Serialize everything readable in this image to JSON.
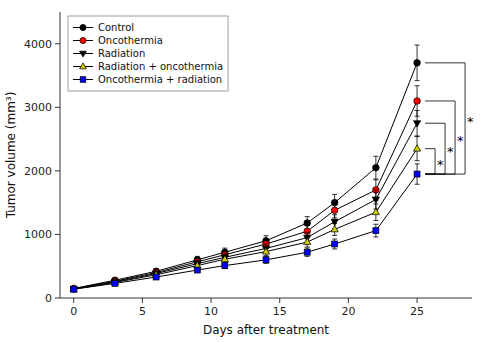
{
  "chart_data": {
    "type": "line",
    "x": [
      0,
      3,
      6,
      9,
      11,
      14,
      17,
      19,
      22,
      25
    ],
    "series": [
      {
        "name": "Control",
        "color": "black",
        "marker": "circle",
        "values": [
          150,
          280,
          420,
          600,
          720,
          900,
          1180,
          1500,
          2050,
          3700
        ],
        "errors": [
          15,
          30,
          40,
          55,
          65,
          80,
          100,
          130,
          180,
          280
        ]
      },
      {
        "name": "Oncothermia",
        "color": "red",
        "marker": "circle",
        "values": [
          145,
          265,
          400,
          570,
          680,
          850,
          1050,
          1380,
          1700,
          3100
        ],
        "errors": [
          15,
          28,
          38,
          52,
          60,
          75,
          90,
          120,
          160,
          240
        ]
      },
      {
        "name": "Radiation",
        "color": "black",
        "marker": "triangle-down",
        "values": [
          142,
          255,
          385,
          540,
          640,
          780,
          950,
          1200,
          1550,
          2750
        ],
        "errors": [
          14,
          26,
          36,
          50,
          58,
          70,
          85,
          110,
          150,
          200
        ]
      },
      {
        "name": "Radiation + oncothermia",
        "color": "#cccc00",
        "marker": "triangle-up",
        "values": [
          140,
          245,
          365,
          510,
          610,
          730,
          880,
          1080,
          1350,
          2350
        ],
        "errors": [
          14,
          24,
          34,
          48,
          55,
          65,
          78,
          95,
          130,
          190
        ]
      },
      {
        "name": "Oncothermia + radiation",
        "color": "blue",
        "marker": "square",
        "values": [
          138,
          230,
          330,
          440,
          510,
          600,
          720,
          850,
          1060,
          1950
        ],
        "errors": [
          13,
          22,
          30,
          40,
          48,
          55,
          65,
          78,
          100,
          160
        ]
      }
    ],
    "xlabel": "Days after treatment",
    "ylabel": "Tumor volume (mm³)",
    "xlim": [
      -1,
      29
    ],
    "ylim": [
      0,
      4500
    ],
    "xticks": [
      0,
      5,
      10,
      15,
      20,
      25
    ],
    "yticks": [
      0,
      1000,
      2000,
      3000,
      4000
    ],
    "legend": "upper left",
    "annotations": [
      {
        "text": "*",
        "y_top": 3700,
        "y_bottom": 1950
      },
      {
        "text": "*",
        "y_top": 3100,
        "y_bottom": 1950
      },
      {
        "text": "*",
        "y_top": 2750,
        "y_bottom": 1950
      },
      {
        "text": "*",
        "y_top": 2350,
        "y_bottom": 1950
      }
    ]
  }
}
